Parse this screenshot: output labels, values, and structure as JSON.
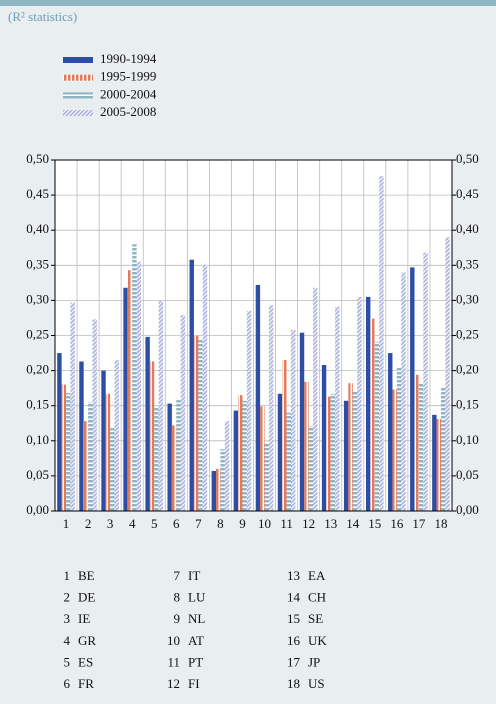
{
  "chart_data": {
    "type": "bar",
    "subtitle": "(R² statistics)",
    "categories": [
      "1",
      "2",
      "3",
      "4",
      "5",
      "6",
      "7",
      "8",
      "9",
      "10",
      "11",
      "12",
      "13",
      "14",
      "15",
      "16",
      "17",
      "18"
    ],
    "country_codes": [
      "BE",
      "DE",
      "IE",
      "GR",
      "ES",
      "FR",
      "IT",
      "LU",
      "NL",
      "AT",
      "PT",
      "FI",
      "EA",
      "CH",
      "SE",
      "UK",
      "JP",
      "US"
    ],
    "series": [
      {
        "name": "1990-1994",
        "color": "#2d4ea6",
        "pattern": "solid",
        "values": [
          0.225,
          0.213,
          0.2,
          0.318,
          0.248,
          0.153,
          0.358,
          0.057,
          0.143,
          0.322,
          0.167,
          0.254,
          0.208,
          0.157,
          0.305,
          0.225,
          0.347,
          0.137
        ]
      },
      {
        "name": "1995-1999",
        "color": "#e27a5c",
        "pattern": "vertical-stripes",
        "values": [
          0.18,
          0.128,
          0.167,
          0.343,
          0.213,
          0.122,
          0.25,
          0.06,
          0.165,
          0.149,
          0.215,
          0.184,
          0.163,
          0.182,
          0.274,
          0.173,
          0.194,
          0.131
        ]
      },
      {
        "name": "2000-2004",
        "color": "#8fb4c4",
        "pattern": "horizontal-stripes",
        "values": [
          0.168,
          0.155,
          0.118,
          0.38,
          0.148,
          0.158,
          0.244,
          0.088,
          0.157,
          0.096,
          0.14,
          0.121,
          0.167,
          0.17,
          0.241,
          0.205,
          0.182,
          0.176
        ]
      },
      {
        "name": "2005-2008",
        "color": "#6f78c2",
        "pattern": "diagonal-hatch",
        "values": [
          0.297,
          0.273,
          0.215,
          0.355,
          0.299,
          0.279,
          0.351,
          0.128,
          0.285,
          0.293,
          0.258,
          0.318,
          0.291,
          0.305,
          0.477,
          0.34,
          0.368,
          0.39
        ]
      }
    ],
    "ylim": [
      0,
      0.5
    ],
    "yticks": [
      {
        "value": 0,
        "label": "0,00"
      },
      {
        "value": 0.05,
        "label": "0,05"
      },
      {
        "value": 0.1,
        "label": "0,10"
      },
      {
        "value": 0.15,
        "label": "0,15"
      },
      {
        "value": 0.2,
        "label": "0,20"
      },
      {
        "value": 0.25,
        "label": "0,25"
      },
      {
        "value": 0.3,
        "label": "0,30"
      },
      {
        "value": 0.35,
        "label": "0,35"
      },
      {
        "value": 0.4,
        "label": "0,40"
      },
      {
        "value": 0.45,
        "label": "0,45"
      },
      {
        "value": 0.5,
        "label": "0,50"
      }
    ],
    "grid": true,
    "right_axis": true
  }
}
